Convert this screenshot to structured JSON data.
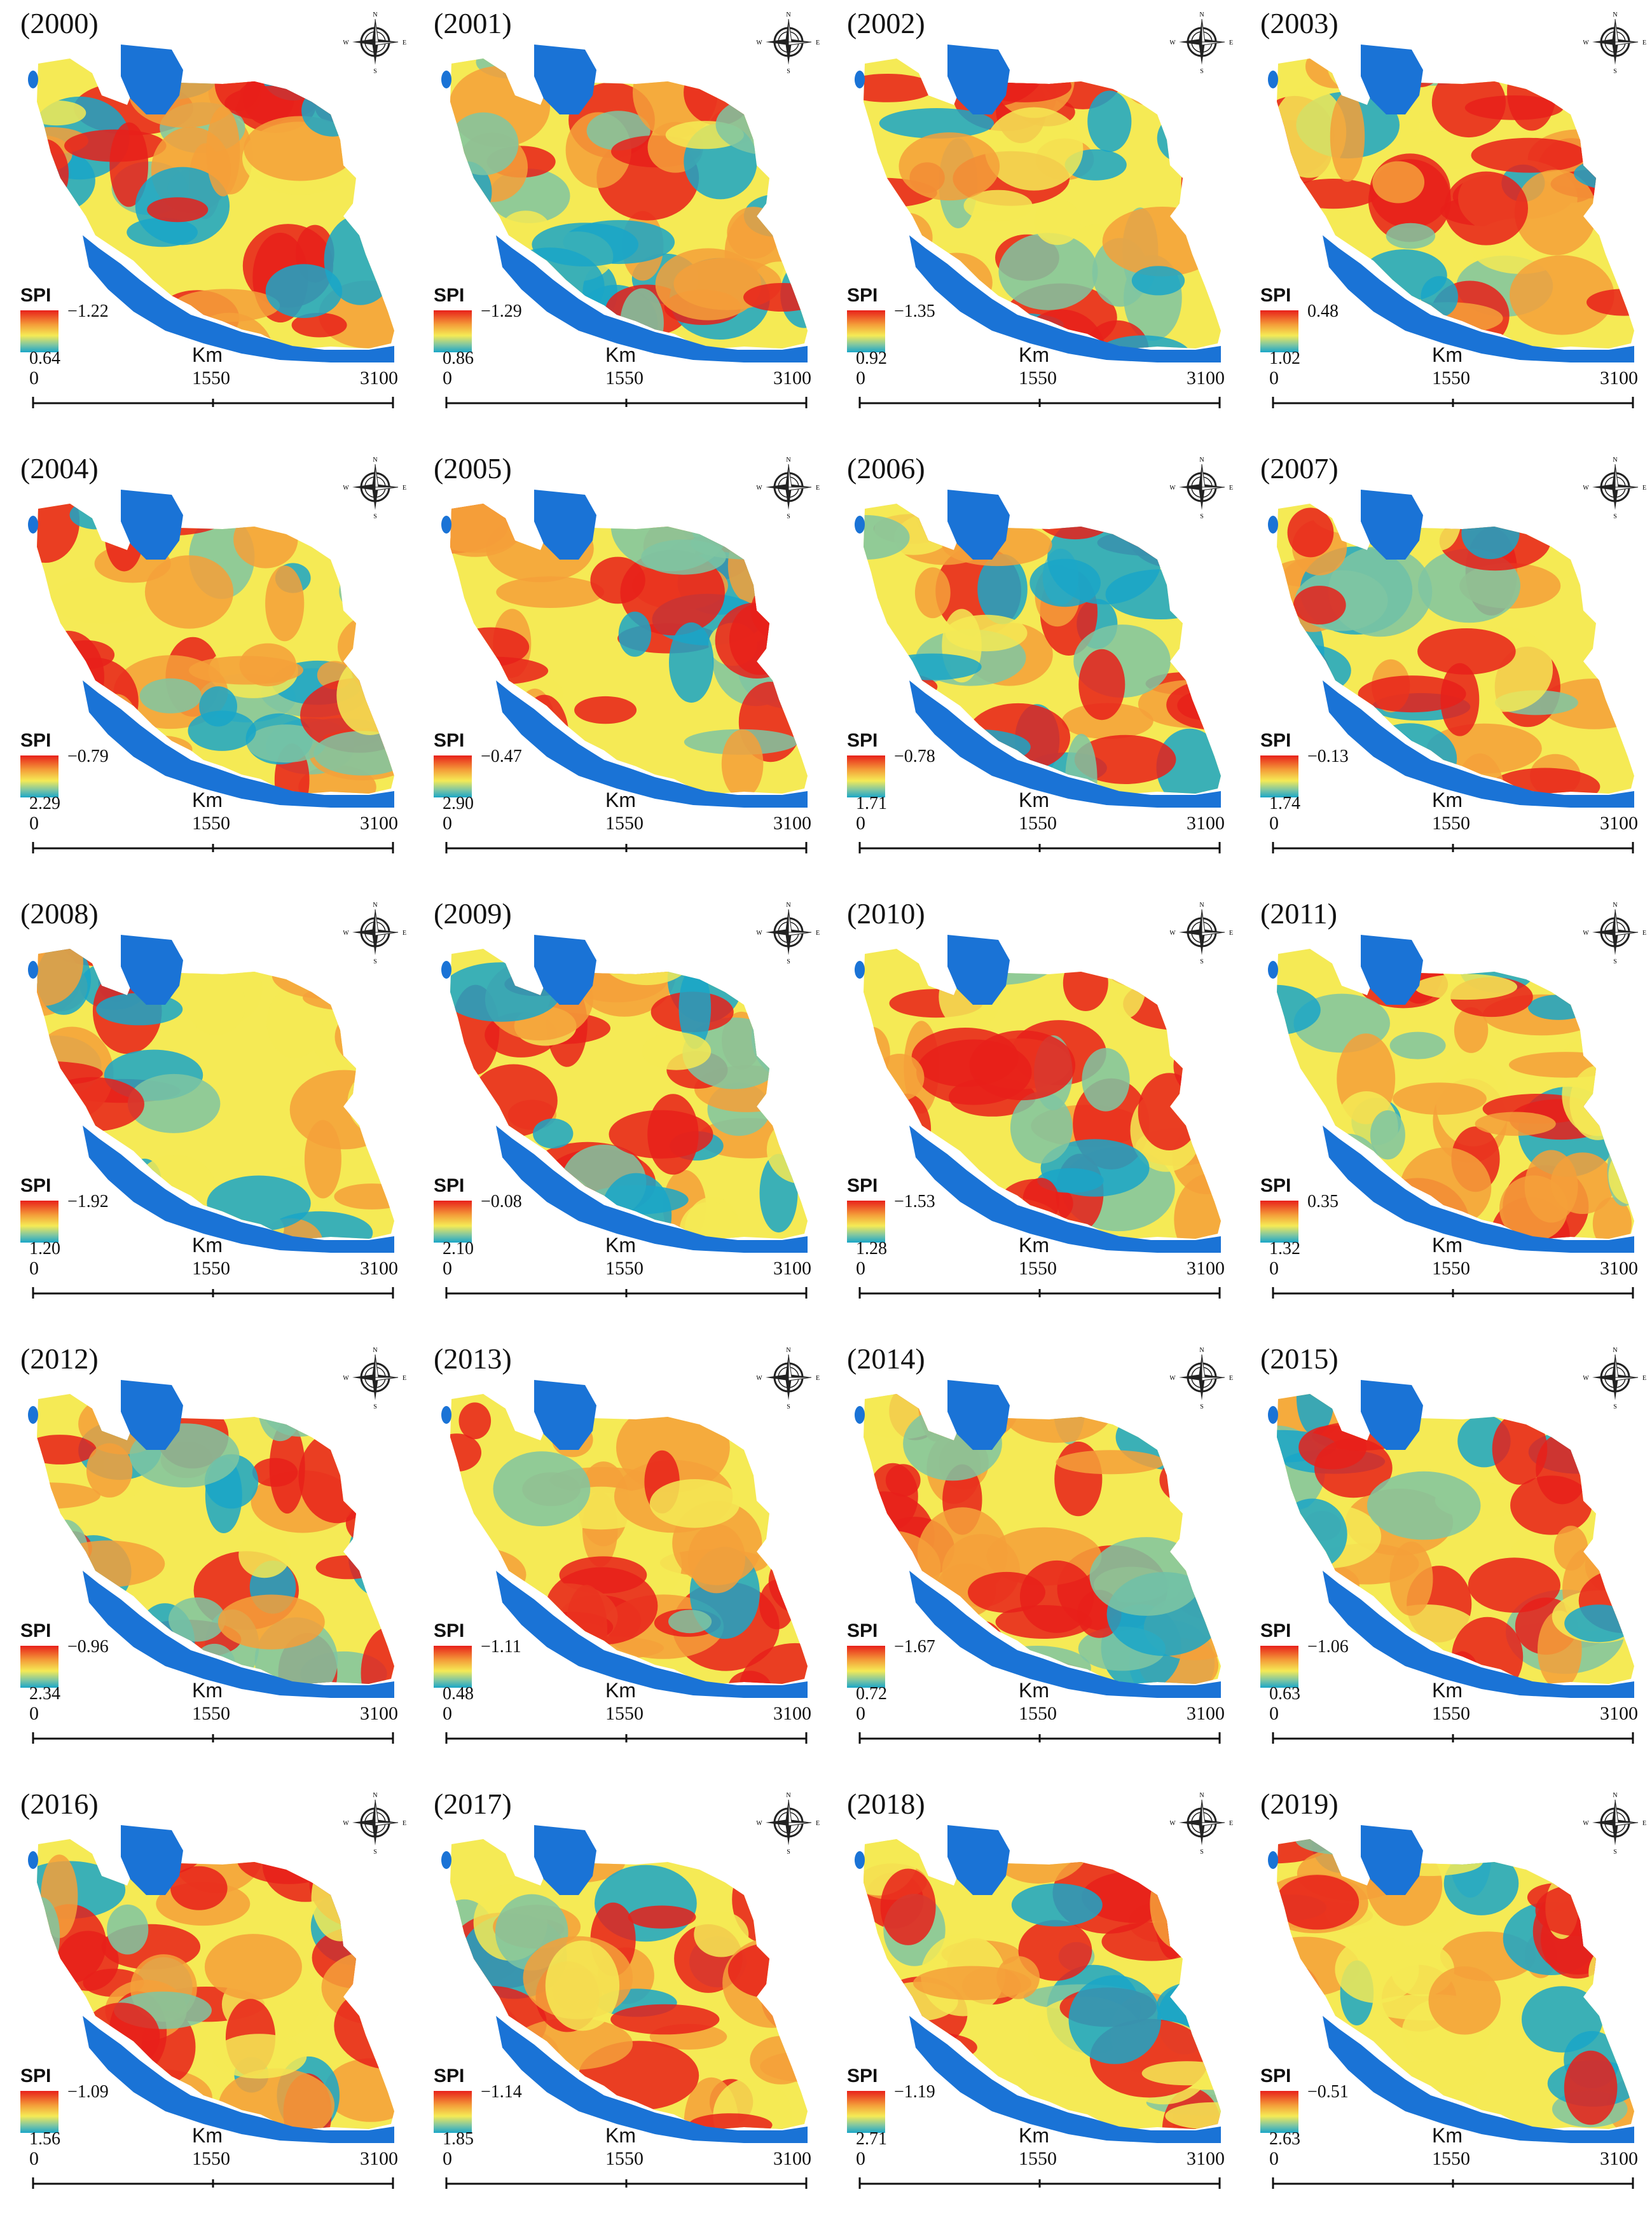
{
  "legend_title": "SPI",
  "scale": {
    "unit": "Km",
    "ticks": [
      "0",
      "1550",
      "3100"
    ]
  },
  "colors": {
    "sea": "#1a73d6",
    "dry": "#e8201a",
    "mid": "#f5ea55",
    "wet": "#1aa6c8",
    "moderate": "#7fc6a2",
    "orange": "#f4a03a"
  },
  "panels": [
    {
      "year": "(2000)",
      "max": "−1.22",
      "min": "0.64"
    },
    {
      "year": "(2001)",
      "max": "−1.29",
      "min": "0.86"
    },
    {
      "year": "(2002)",
      "max": "−1.35",
      "min": "0.92"
    },
    {
      "year": "(2003)",
      "max": "0.48",
      "min": "1.02"
    },
    {
      "year": "(2004)",
      "max": "−0.79",
      "min": "2.29"
    },
    {
      "year": "(2005)",
      "max": "−0.47",
      "min": "2.90"
    },
    {
      "year": "(2006)",
      "max": "−0.78",
      "min": "1.71"
    },
    {
      "year": "(2007)",
      "max": "−0.13",
      "min": "1.74"
    },
    {
      "year": "(2008)",
      "max": "−1.92",
      "min": "1.20"
    },
    {
      "year": "(2009)",
      "max": "−0.08",
      "min": "2.10"
    },
    {
      "year": "(2010)",
      "max": "−1.53",
      "min": "1.28"
    },
    {
      "year": "(2011)",
      "max": "0.35",
      "min": "1.32"
    },
    {
      "year": "(2012)",
      "max": "−0.96",
      "min": "2.34"
    },
    {
      "year": "(2013)",
      "max": "−1.11",
      "min": "0.48"
    },
    {
      "year": "(2014)",
      "max": "−1.67",
      "min": "0.72"
    },
    {
      "year": "(2015)",
      "max": "−1.06",
      "min": "0.63"
    },
    {
      "year": "(2016)",
      "max": "−1.09",
      "min": "1.56"
    },
    {
      "year": "(2017)",
      "max": "−1.14",
      "min": "1.85"
    },
    {
      "year": "(2018)",
      "max": "−1.19",
      "min": "2.71"
    },
    {
      "year": "(2019)",
      "max": "−0.51",
      "min": "2.63"
    }
  ]
}
